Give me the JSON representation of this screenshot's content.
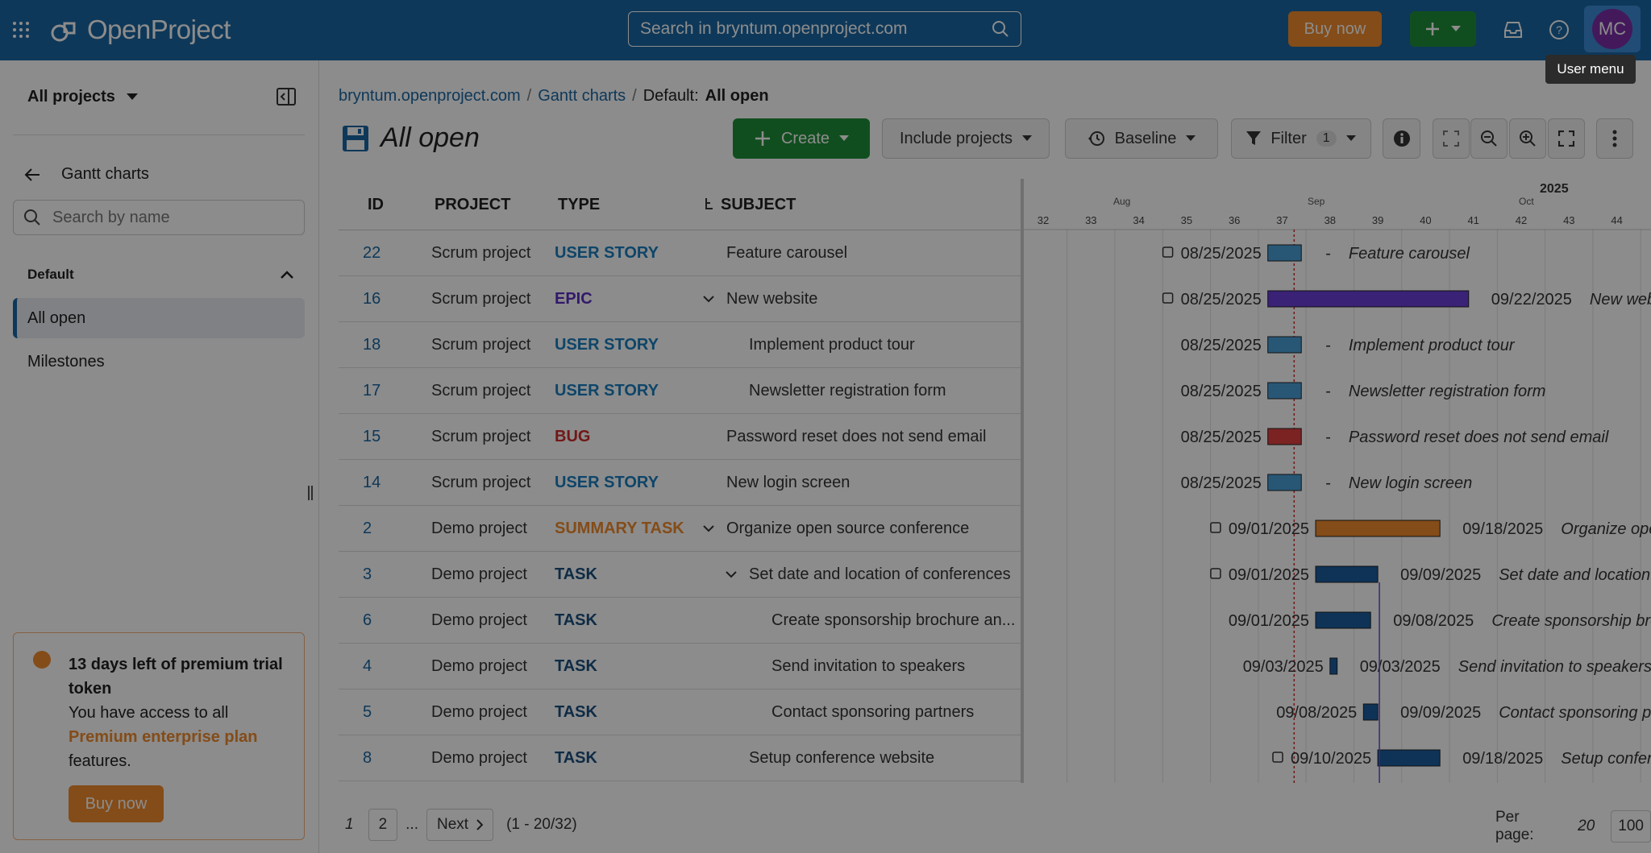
{
  "header": {
    "logo_text": "OpenProject",
    "search_placeholder": "Search in bryntum.openproject.com",
    "buy_label": "Buy now",
    "avatar_initials": "MC",
    "tooltip": "User menu"
  },
  "sidebar": {
    "project_select": "All projects",
    "back_label": "Gantt charts",
    "search_placeholder": "Search by name",
    "section_label": "Default",
    "items": [
      {
        "label": "All open",
        "active": true
      },
      {
        "label": "Milestones",
        "active": false
      }
    ],
    "trial": {
      "title": "13 days left of premium trial token",
      "text_before": "You have access to all",
      "link": "Premium enterprise plan",
      "text_after": "features.",
      "button": "Buy now"
    }
  },
  "breadcrumb": {
    "site": "bryntum.openproject.com",
    "section": "Gantt charts",
    "current_prefix": "Default:",
    "current": "All open"
  },
  "page": {
    "title": "All open"
  },
  "toolbar": {
    "create": "Create",
    "include_projects": "Include projects",
    "baseline": "Baseline",
    "filter": "Filter",
    "filter_count": "1"
  },
  "table": {
    "columns": [
      "ID",
      "PROJECT",
      "TYPE",
      "SUBJECT"
    ],
    "rows": [
      {
        "id": "22",
        "project": "Scrum project",
        "type": "USER STORY",
        "subject": "Feature carousel",
        "indent": 0,
        "expand": false
      },
      {
        "id": "16",
        "project": "Scrum project",
        "type": "EPIC",
        "subject": "New website",
        "indent": 0,
        "expand": true
      },
      {
        "id": "18",
        "project": "Scrum project",
        "type": "USER STORY",
        "subject": "Implement product tour",
        "indent": 1,
        "expand": false
      },
      {
        "id": "17",
        "project": "Scrum project",
        "type": "USER STORY",
        "subject": "Newsletter registration form",
        "indent": 1,
        "expand": false
      },
      {
        "id": "15",
        "project": "Scrum project",
        "type": "BUG",
        "subject": "Password reset does not send email",
        "indent": 0,
        "expand": false
      },
      {
        "id": "14",
        "project": "Scrum project",
        "type": "USER STORY",
        "subject": "New login screen",
        "indent": 0,
        "expand": false
      },
      {
        "id": "2",
        "project": "Demo project",
        "type": "SUMMARY TASK",
        "subject": "Organize open source conference",
        "indent": 0,
        "expand": true
      },
      {
        "id": "3",
        "project": "Demo project",
        "type": "TASK",
        "subject": "Set date and location of conferences",
        "indent": 1,
        "expand": true
      },
      {
        "id": "6",
        "project": "Demo project",
        "type": "TASK",
        "subject": "Create sponsorship brochure an...",
        "indent": 2,
        "expand": false
      },
      {
        "id": "4",
        "project": "Demo project",
        "type": "TASK",
        "subject": "Send invitation to speakers",
        "indent": 2,
        "expand": false
      },
      {
        "id": "5",
        "project": "Demo project",
        "type": "TASK",
        "subject": "Contact sponsoring partners",
        "indent": 2,
        "expand": false
      },
      {
        "id": "8",
        "project": "Demo project",
        "type": "TASK",
        "subject": "Setup conference website",
        "indent": 1,
        "expand": false
      }
    ]
  },
  "type_colors": {
    "USER STORY": "#1a7fbf",
    "EPIC": "#5b2fc4",
    "BUG": "#d02b2b",
    "SUMMARY TASK": "#f08a2c",
    "TASK": "#1a4f80"
  },
  "gantt": {
    "year": "2025",
    "months": [
      "Aug",
      "Sep",
      "Oct"
    ],
    "weeks": [
      "32",
      "33",
      "34",
      "35",
      "36",
      "37",
      "38",
      "39",
      "40",
      "41",
      "42",
      "43",
      "44"
    ],
    "bars": [
      {
        "start": "08/25/2025",
        "end": "-",
        "label": "Feature carousel",
        "color": "#4a9ed8",
        "s": 36.7,
        "e": 37.4,
        "milestone_icon": true
      },
      {
        "start": "08/25/2025",
        "end": "09/22/2025",
        "label": "New website",
        "color": "#6a3fd8",
        "s": 36.7,
        "e": 40.9,
        "milestone_icon": true
      },
      {
        "start": "08/25/2025",
        "end": "-",
        "label": "Implement product tour",
        "color": "#4a9ed8",
        "s": 36.7,
        "e": 37.4,
        "milestone_icon": false
      },
      {
        "start": "08/25/2025",
        "end": "-",
        "label": "Newsletter registration form",
        "color": "#4a9ed8",
        "s": 36.7,
        "e": 37.4,
        "milestone_icon": false
      },
      {
        "start": "08/25/2025",
        "end": "-",
        "label": "Password reset does not send email",
        "color": "#e04040",
        "s": 36.7,
        "e": 37.4,
        "milestone_icon": false
      },
      {
        "start": "08/25/2025",
        "end": "-",
        "label": "New login screen",
        "color": "#4a9ed8",
        "s": 36.7,
        "e": 37.4,
        "milestone_icon": false
      },
      {
        "start": "09/01/2025",
        "end": "09/18/2025",
        "label": "Organize open source co",
        "color": "#f08a2c",
        "s": 37.7,
        "e": 40.3,
        "milestone_icon": true
      },
      {
        "start": "09/01/2025",
        "end": "09/09/2025",
        "label": "Set date and location of confere",
        "color": "#1a5d9e",
        "s": 37.7,
        "e": 39.0,
        "milestone_icon": true
      },
      {
        "start": "09/01/2025",
        "end": "09/08/2025",
        "label": "Create sponsorship brochure and",
        "color": "#1a5d9e",
        "s": 37.7,
        "e": 38.85,
        "milestone_icon": false
      },
      {
        "start": "09/03/2025",
        "end": "09/03/2025",
        "label": "Send invitation to speakers",
        "color": "#1a5d9e",
        "s": 38.0,
        "e": 38.15,
        "milestone_icon": false
      },
      {
        "start": "09/08/2025",
        "end": "09/09/2025",
        "label": "Contact sponsoring partners",
        "color": "#1a5d9e",
        "s": 38.7,
        "e": 39.0,
        "milestone_icon": false
      },
      {
        "start": "09/10/2025",
        "end": "09/18/2025",
        "label": "Setup conference websi",
        "color": "#1a5d9e",
        "s": 39.0,
        "e": 40.3,
        "milestone_icon": true
      }
    ]
  },
  "pager": {
    "current": "1",
    "page2": "2",
    "ellipsis": "...",
    "next": "Next",
    "range": "(1 - 20/32)",
    "per_page_label": "Per page:",
    "per_page_20": "20",
    "per_page_100": "100"
  }
}
